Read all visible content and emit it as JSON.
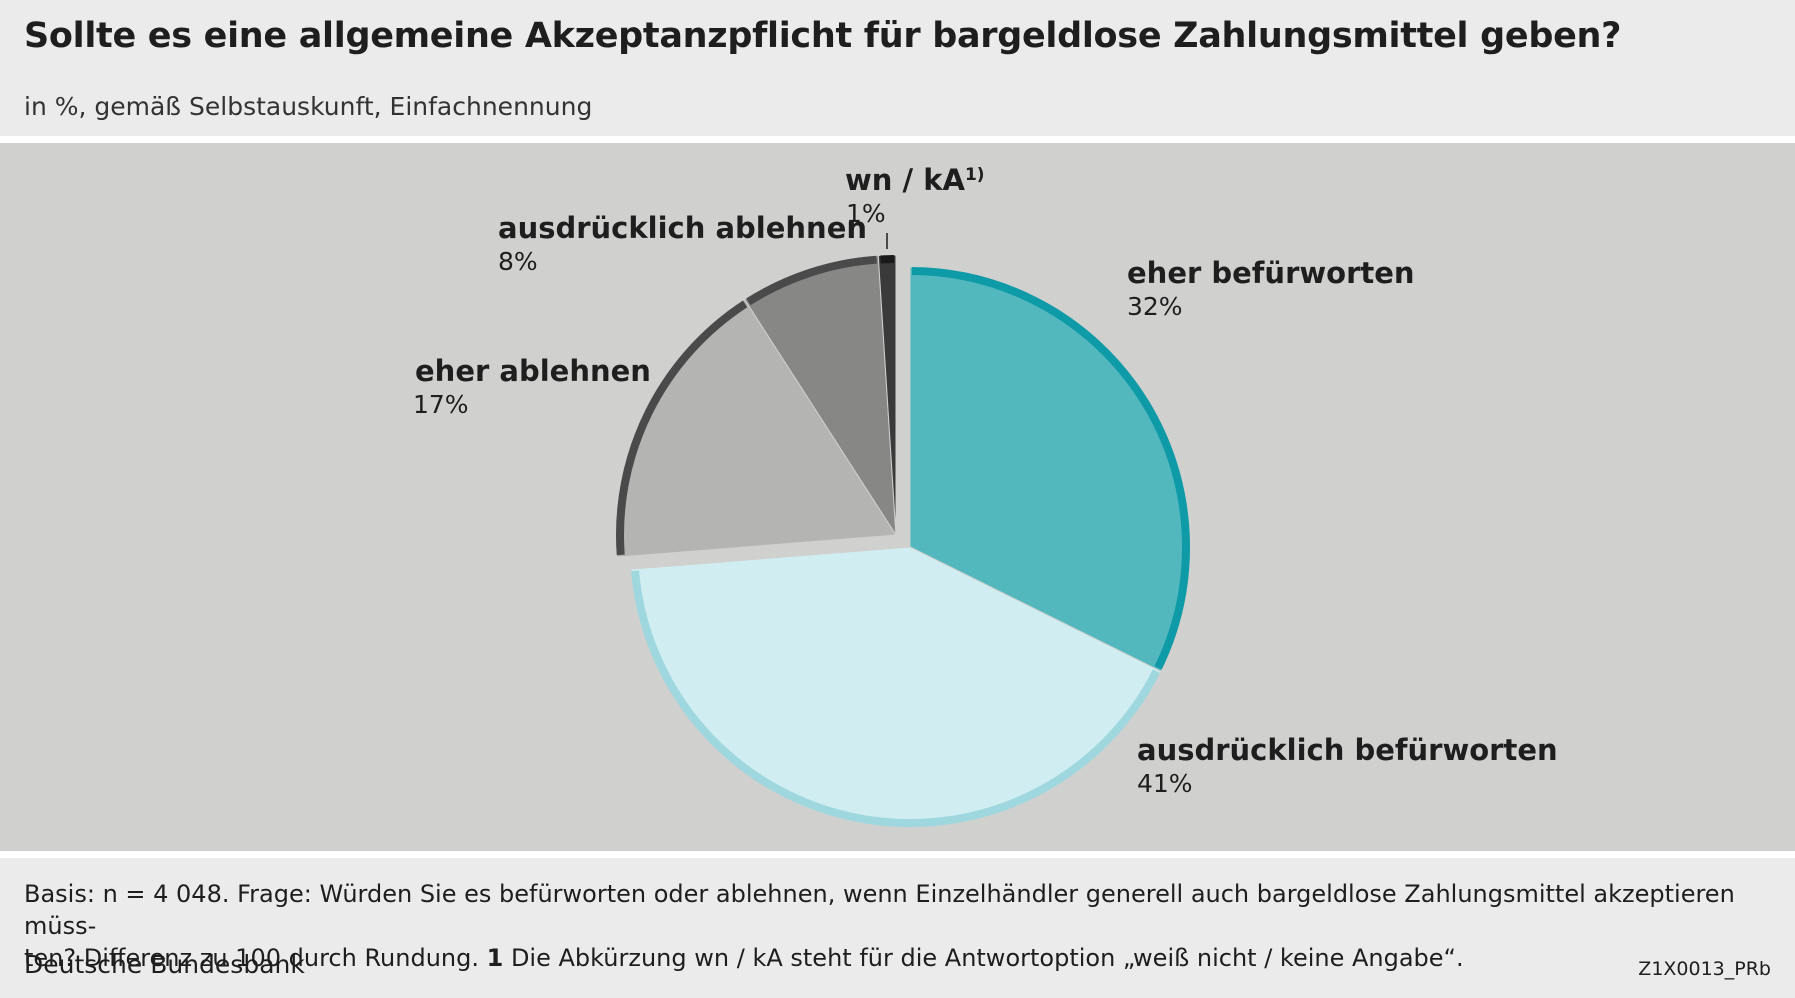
{
  "header": {
    "title": "Sollte es eine allgemeine Akzeptanzpflicht für bargeldlose Zahlungsmittel geben?",
    "subtitle": "in %, gemäß Selbstauskunft, Einfachnennung"
  },
  "chart_data": {
    "type": "pie",
    "title": "Sollte es eine allgemeine Akzeptanzpflicht für bargeldlose Zahlungsmittel geben?",
    "subtitle": "in %, gemäß Selbstauskunft, Einfachnennung",
    "slices": [
      {
        "label": "eher befürworten",
        "value": 32,
        "value_label": "32%",
        "fill": "#52b8be",
        "edge": "#0e9aa7"
      },
      {
        "label": "ausdrücklich befürworten",
        "value": 41,
        "value_label": "41%",
        "fill": "#d0eef1",
        "edge": "#9fd7de"
      },
      {
        "label": "eher ablehnen",
        "value": 17,
        "value_label": "17%",
        "fill": "#b4b4b2",
        "edge": "#4a4a4a"
      },
      {
        "label": "ausdrücklich ablehnen",
        "value": 8,
        "value_label": "8%",
        "fill": "#878786",
        "edge": "#4a4a4a"
      },
      {
        "label": "wn / kA",
        "label_sup": "1)",
        "value": 1,
        "value_label": "1%",
        "fill": "#3a3a3a",
        "edge": "#1a1a1a"
      }
    ]
  },
  "footer": {
    "note_line1": "Basis: n = 4 048. Frage: Würden Sie es befürworten oder ablehnen, wenn Einzelhändler generell auch bargeldlose Zahlungsmittel akzeptieren müss-",
    "note_line2_a": "ten? Differenz zu 100 durch Rundung. ",
    "note_line2_bold": "1",
    "note_line2_b": " Die Abkürzung wn / kA steht für die Antwortoption „weiß nicht / keine Angabe“.",
    "source": "Deutsche Bundesbank",
    "code": "Z1X0013_PRb"
  }
}
